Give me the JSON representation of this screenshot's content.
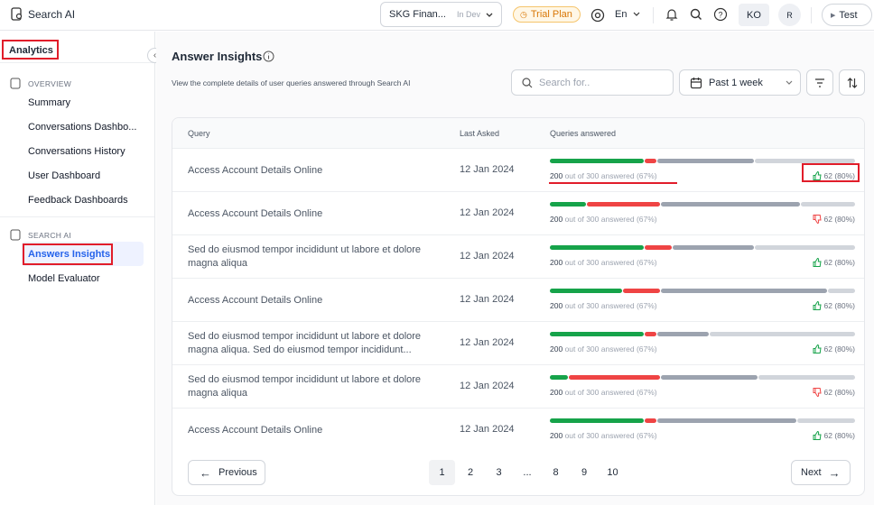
{
  "topbar": {
    "app": "Search AI",
    "workspace": "SKG Finan...",
    "env": "In Dev",
    "plan": "Trial Plan",
    "lang": "En",
    "user": "KO",
    "avatar": "R",
    "test": "Test"
  },
  "sidebar": {
    "title": "Analytics",
    "sections": [
      {
        "label": "OVERVIEW",
        "items": [
          "Summary",
          "Conversations Dashbo...",
          "Conversations History",
          "User Dashboard",
          "Feedback Dashboards"
        ]
      },
      {
        "label": "SEARCH AI",
        "items": [
          "Answers Insights",
          "Model Evaluator"
        ]
      }
    ]
  },
  "header": {
    "title": "Answer Insights",
    "subtitle": "View the complete details of user queries answered through Search AI",
    "search": "Search for..",
    "period": "Past 1 week"
  },
  "table": {
    "headers": [
      "Query",
      "Last Asked",
      "Queries answered"
    ],
    "rows": [
      {
        "query": "Access Account Details Online",
        "date": "12 Jan 2024",
        "answered_count": "200",
        "answered_detail": "out of 300 answered (67%)",
        "rating": "62 (80%)",
        "thumb": "up",
        "segments": [
          31,
          4,
          32,
          33
        ]
      },
      {
        "query": "Access Account Details Online",
        "date": "12 Jan 2024",
        "answered_count": "200",
        "answered_detail": "out of 300 answered (67%)",
        "rating": "62 (80%)",
        "thumb": "down",
        "segments": [
          12,
          24,
          46,
          18
        ]
      },
      {
        "query": "Sed do eiusmod tempor incididunt ut labore et dolore magna aliqua",
        "date": "12 Jan 2024",
        "answered_count": "200",
        "answered_detail": "out of 300 answered (67%)",
        "rating": "62 (80%)",
        "thumb": "up",
        "segments": [
          31,
          9,
          27,
          33
        ]
      },
      {
        "query": "Access Account Details Online",
        "date": "12 Jan 2024",
        "answered_count": "200",
        "answered_detail": "out of 300 answered (67%)",
        "rating": "62 (80%)",
        "thumb": "up",
        "segments": [
          24,
          12,
          55,
          9
        ]
      },
      {
        "query": "Sed do eiusmod tempor incididunt ut labore et dolore magna aliqua. Sed do eiusmod tempor incididunt...",
        "date": "12 Jan 2024",
        "answered_count": "200",
        "answered_detail": "out of 300 answered (67%)",
        "rating": "62 (80%)",
        "thumb": "up",
        "segments": [
          31,
          4,
          17,
          48
        ]
      },
      {
        "query": "Sed do eiusmod tempor incididunt ut labore et dolore magna aliqua",
        "date": "12 Jan 2024",
        "answered_count": "200",
        "answered_detail": "out of 300 answered (67%)",
        "rating": "62 (80%)",
        "thumb": "down",
        "segments": [
          6,
          30,
          32,
          32
        ]
      },
      {
        "query": "Access Account Details Online",
        "date": "12 Jan 2024",
        "answered_count": "200",
        "answered_detail": "out of 300 answered (67%)",
        "rating": "62 (80%)",
        "thumb": "up",
        "segments": [
          31,
          4,
          46,
          19
        ]
      }
    ]
  },
  "pagination": {
    "previous": "Previous",
    "next": "Next",
    "pages": [
      "1",
      "2",
      "3",
      "...",
      "8",
      "9",
      "10"
    ]
  }
}
